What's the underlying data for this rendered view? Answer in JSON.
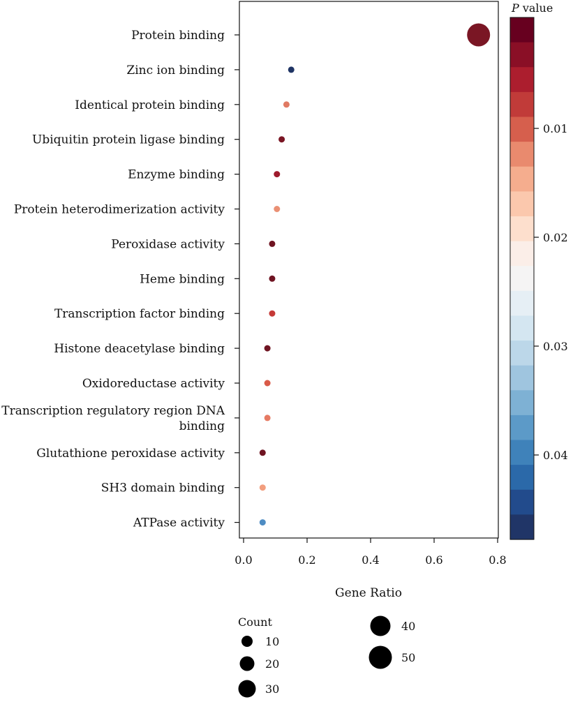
{
  "chart_data": {
    "type": "scatter",
    "xlabel": "Gene Ratio",
    "xlim": [
      -0.01,
      0.82
    ],
    "xticks": [
      0.0,
      0.2,
      0.4,
      0.6,
      0.8
    ],
    "xtick_labels": [
      "0.0",
      "0.2",
      "0.4",
      "0.6",
      "0.8"
    ],
    "grid": false,
    "categories": [
      {
        "label": "Protein binding",
        "label_lines": [
          "Protein binding"
        ],
        "gene_ratio": 0.74,
        "p_value": 0.001,
        "count": 50,
        "color": "#7a1624"
      },
      {
        "label": "Zinc ion binding",
        "label_lines": [
          "Zinc ion binding"
        ],
        "gene_ratio": 0.15,
        "p_value": 0.047,
        "count": 10,
        "color": "#1f3464"
      },
      {
        "label": "Identical protein binding",
        "label_lines": [
          "Identical protein binding"
        ],
        "gene_ratio": 0.135,
        "p_value": 0.012,
        "count": 10,
        "color": "#e07a63"
      },
      {
        "label": "Ubiquitin protein ligase binding",
        "label_lines": [
          "Ubiquitin protein ligase binding"
        ],
        "gene_ratio": 0.12,
        "p_value": 0.001,
        "count": 10,
        "color": "#7a1624"
      },
      {
        "label": "Enzyme binding",
        "label_lines": [
          "Enzyme binding"
        ],
        "gene_ratio": 0.105,
        "p_value": 0.003,
        "count": 10,
        "color": "#9e1b2c"
      },
      {
        "label": "Protein heterodimerization activity",
        "label_lines": [
          "Protein heterodimerization activity"
        ],
        "gene_ratio": 0.105,
        "p_value": 0.013,
        "count": 10,
        "color": "#ea9074"
      },
      {
        "label": "Peroxidase activity",
        "label_lines": [
          "Peroxidase activity"
        ],
        "gene_ratio": 0.09,
        "p_value": 0.001,
        "count": 10,
        "color": "#6f1422"
      },
      {
        "label": "Heme binding",
        "label_lines": [
          "Heme binding"
        ],
        "gene_ratio": 0.09,
        "p_value": 0.001,
        "count": 10,
        "color": "#6f1422"
      },
      {
        "label": "Transcription factor binding",
        "label_lines": [
          "Transcription factor binding"
        ],
        "gene_ratio": 0.09,
        "p_value": 0.007,
        "count": 10,
        "color": "#c53a37"
      },
      {
        "label": "Histone deacetylase binding",
        "label_lines": [
          "Histone deacetylase binding"
        ],
        "gene_ratio": 0.075,
        "p_value": 0.001,
        "count": 10,
        "color": "#6f1422"
      },
      {
        "label": "Oxidoreductase activity",
        "label_lines": [
          "Oxidoreductase activity"
        ],
        "gene_ratio": 0.075,
        "p_value": 0.009,
        "count": 10,
        "color": "#d95a48"
      },
      {
        "label": "Transcription regulatory region DNA binding",
        "label_lines": [
          "Transcription regulatory region DNA",
          "binding"
        ],
        "gene_ratio": 0.075,
        "p_value": 0.011,
        "count": 10,
        "color": "#e67a63"
      },
      {
        "label": "Glutathione peroxidase activity",
        "label_lines": [
          "Glutathione peroxidase activity"
        ],
        "gene_ratio": 0.06,
        "p_value": 0.001,
        "count": 10,
        "color": "#6f1422"
      },
      {
        "label": "SH3 domain binding",
        "label_lines": [
          "SH3 domain binding"
        ],
        "gene_ratio": 0.06,
        "p_value": 0.014,
        "count": 10,
        "color": "#f29e7e"
      },
      {
        "label": "ATPase activity",
        "label_lines": [
          "ATPase activity"
        ],
        "gene_ratio": 0.06,
        "p_value": 0.041,
        "count": 10,
        "color": "#4e8cc3"
      }
    ],
    "colorbar": {
      "title_italic": "P",
      "title_rest": " value",
      "range": [
        0.0,
        0.047
      ],
      "ticks": [
        0.01,
        0.02,
        0.03,
        0.04
      ],
      "tick_labels": [
        "0.01",
        "0.02",
        "0.03",
        "0.04"
      ],
      "colors": [
        "#67001f",
        "#8a0f26",
        "#ac1e2e",
        "#c13b39",
        "#d65f4d",
        "#e98a6e",
        "#f5ad8e",
        "#fbc8ad",
        "#fddfcd",
        "#fbeee8",
        "#f5f4f4",
        "#e6eff5",
        "#d4e6f1",
        "#bcd7e9",
        "#9fc5df",
        "#7eb1d4",
        "#5c9ac8",
        "#3f82ba",
        "#2b69a9",
        "#224b8c",
        "#203567"
      ]
    },
    "size_legend": {
      "title": "Count",
      "entries": [
        {
          "label": "10",
          "value": 10
        },
        {
          "label": "20",
          "value": 20
        },
        {
          "label": "30",
          "value": 30
        },
        {
          "label": "40",
          "value": 40
        },
        {
          "label": "50",
          "value": 50
        }
      ]
    }
  }
}
